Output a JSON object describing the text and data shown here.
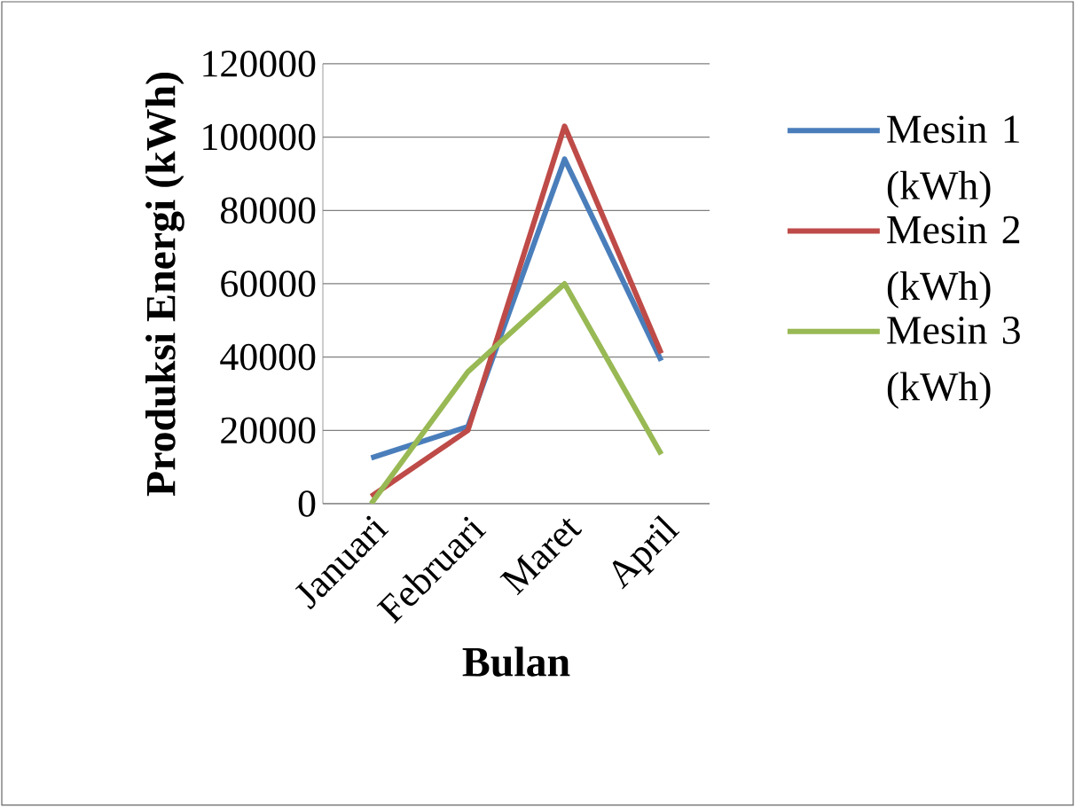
{
  "chart_data": {
    "type": "line",
    "xlabel": "Bulan",
    "ylabel": "Produksi Energi (kWh)",
    "categories": [
      "Januari",
      "Februari",
      "Maret",
      "April"
    ],
    "series": [
      {
        "name": "Mesin 1 (kWh)",
        "color": "#4a7ebb",
        "values": [
          12500,
          21000,
          94000,
          39000
        ]
      },
      {
        "name": "Mesin 2 (kWh)",
        "color": "#be4b48",
        "values": [
          2000,
          20000,
          103000,
          41000
        ]
      },
      {
        "name": "Mesin 3 (kWh)",
        "color": "#98b954",
        "values": [
          0,
          36000,
          60000,
          13500
        ]
      }
    ],
    "ylim": [
      0,
      120000
    ],
    "yticks": [
      0,
      20000,
      40000,
      60000,
      80000,
      100000,
      120000
    ],
    "grid": "y",
    "legend": "right",
    "marker": "none",
    "line_style": "solid"
  }
}
